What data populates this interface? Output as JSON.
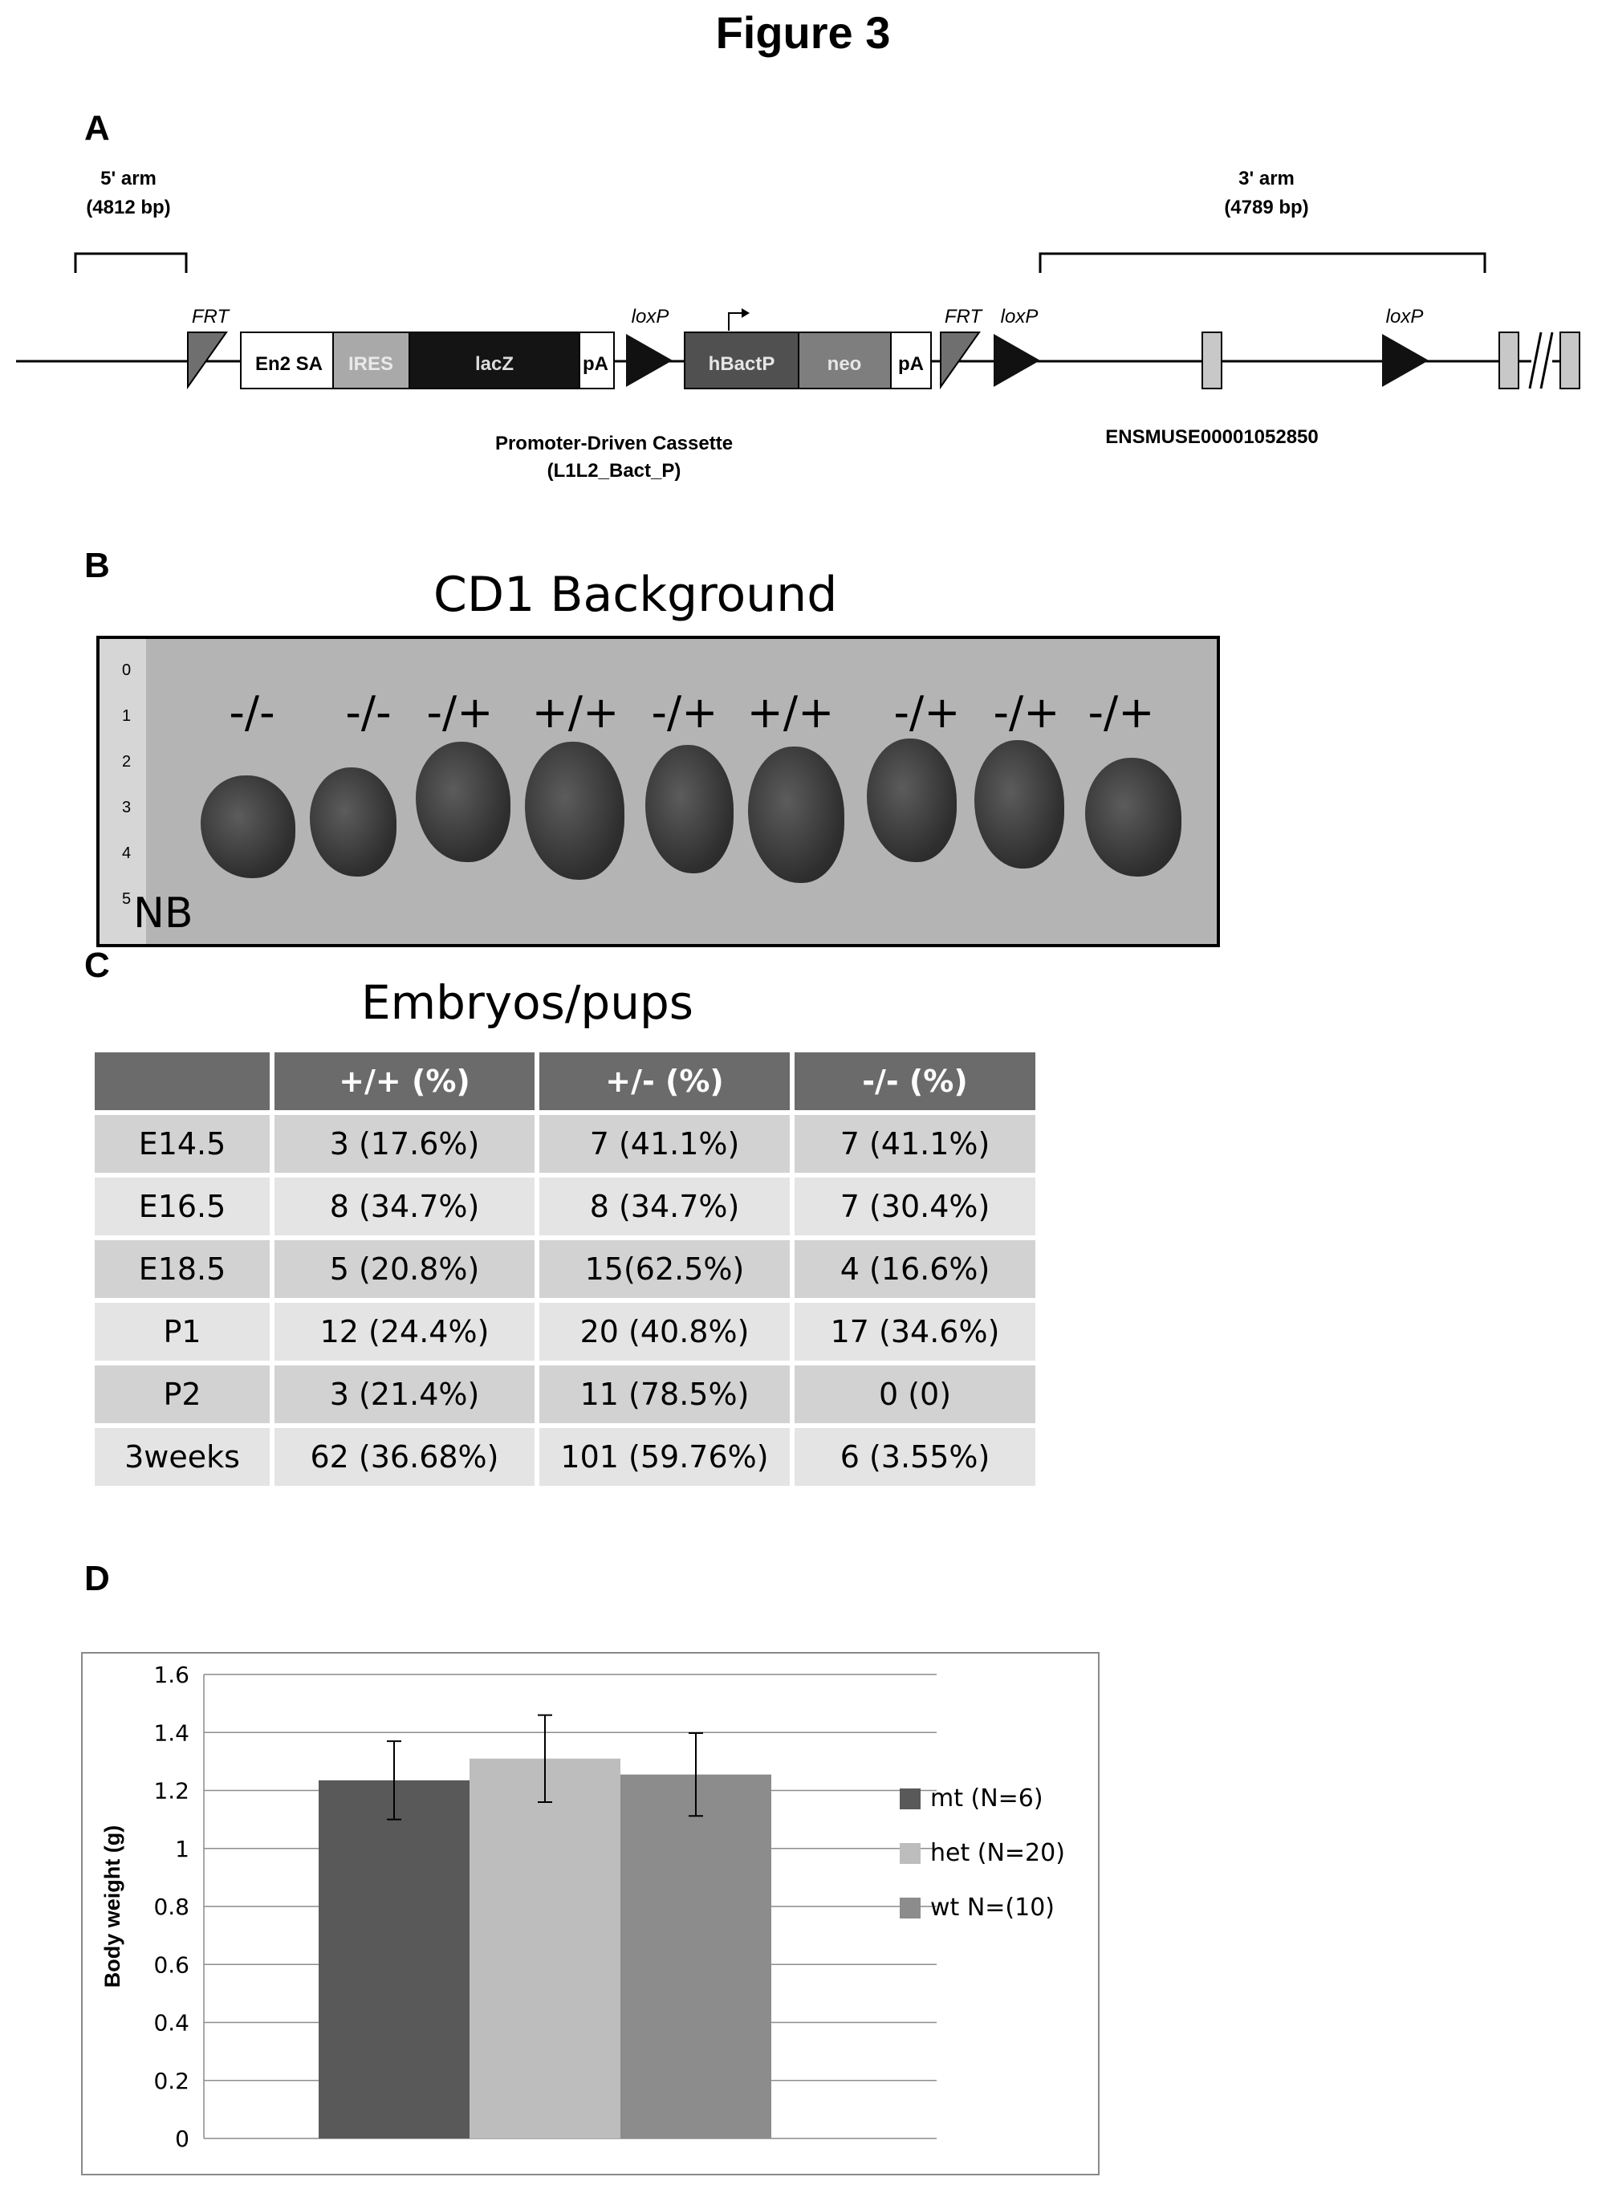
{
  "figure_title": "Figure 3",
  "panels": {
    "a": {
      "letter": "A",
      "arm5_label": "5' arm",
      "arm5_bp": "(4812 bp)",
      "arm3_label": "3' arm",
      "arm3_bp": "(4789 bp)",
      "frt_label": "FRT",
      "loxp_label": "loxP",
      "boxes": [
        "En2 SA",
        "IRES",
        "lacZ",
        "pA",
        "hBactP",
        "neo",
        "pA"
      ],
      "cassette_name": "Promoter-Driven Cassette",
      "cassette_id": "(L1L2_Bact_P)",
      "exon_id": "ENSMUSE00001052850"
    },
    "b": {
      "letter": "B",
      "title": "CD1 Background",
      "genotypes": [
        "-/-",
        "-/-",
        "-/+",
        "+/+",
        "-/+",
        "+/+",
        "-/+",
        "-/+",
        "-/+"
      ],
      "nb_label": "NB",
      "ruler_numbers": [
        "0",
        "1",
        "2",
        "3",
        "4",
        "5"
      ]
    },
    "c": {
      "letter": "C",
      "title": "Embryos/pups",
      "headers": [
        "",
        "+/+ (%)",
        "+/- (%)",
        "-/- (%)"
      ],
      "rows": [
        [
          "E14.5",
          "3 (17.6%)",
          "7 (41.1%)",
          "7 (41.1%)"
        ],
        [
          "E16.5",
          "8 (34.7%)",
          "8 (34.7%)",
          "7 (30.4%)"
        ],
        [
          "E18.5",
          "5 (20.8%)",
          "15(62.5%)",
          "4 (16.6%)"
        ],
        [
          "P1",
          "12 (24.4%)",
          "20 (40.8%)",
          "17 (34.6%)"
        ],
        [
          "P2",
          "3 (21.4%)",
          "11 (78.5%)",
          "0 (0)"
        ],
        [
          "3weeks",
          "62 (36.68%)",
          "101 (59.76%)",
          "6 (3.55%)"
        ]
      ]
    },
    "d": {
      "letter": "D"
    }
  },
  "chart_data": {
    "type": "bar",
    "title": "",
    "xlabel": "",
    "ylabel": "Body weight (g)",
    "ylim": [
      0,
      1.6
    ],
    "yticks": [
      "0",
      "0.2",
      "0.4",
      "0.6",
      "0.8",
      "1",
      "1.2",
      "1.4",
      "1.6"
    ],
    "grid": true,
    "legend_position": "right",
    "series": [
      {
        "name": "mt (N=6)",
        "value": 1.235,
        "error": 0.135,
        "color": "#595959"
      },
      {
        "name": "het (N=20)",
        "value": 1.31,
        "error": 0.15,
        "color": "#bdbdbd"
      },
      {
        "name": "wt N=(10)",
        "value": 1.255,
        "error": 0.143,
        "color": "#8c8c8c"
      }
    ]
  }
}
